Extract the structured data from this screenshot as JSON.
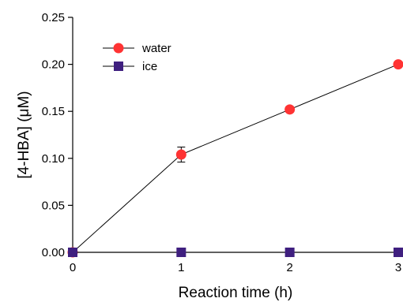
{
  "chart_data": {
    "type": "line",
    "xlabel": "Reaction time (h)",
    "ylabel": "[4-HBA] (μM)",
    "xlim": [
      0,
      3
    ],
    "ylim": [
      0,
      0.25
    ],
    "x_ticks": [
      "0",
      "1",
      "2",
      "3"
    ],
    "y_ticks": [
      "0.00",
      "0.05",
      "0.10",
      "0.15",
      "0.20",
      "0.25"
    ],
    "grid": false,
    "legend_position": "top-left",
    "series": [
      {
        "name": "water",
        "marker": "circle",
        "color": "#ff3333",
        "x": [
          0,
          1,
          2,
          3
        ],
        "y": [
          0,
          0.104,
          0.152,
          0.2
        ],
        "error": [
          0,
          0.008,
          0.003,
          0.003
        ]
      },
      {
        "name": "ice",
        "marker": "square",
        "color": "#3f1f7f",
        "x": [
          0,
          1,
          2,
          3
        ],
        "y": [
          0,
          0,
          0,
          0
        ],
        "error": [
          0,
          0,
          0,
          0
        ]
      }
    ]
  }
}
